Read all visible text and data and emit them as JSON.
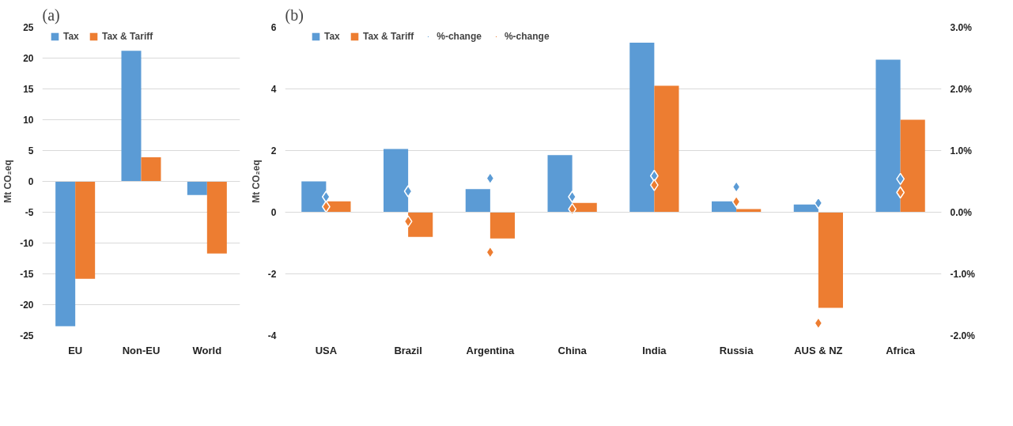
{
  "chart_data": [
    {
      "type": "bar",
      "title": "(a)",
      "ylabel": "Mt CO₂eq",
      "categories": [
        "EU",
        "Non-EU",
        "World"
      ],
      "ylim": [
        -25,
        25
      ],
      "yticks": [
        -25,
        -20,
        -15,
        -10,
        -5,
        0,
        5,
        10,
        15,
        20,
        25
      ],
      "grid": "y",
      "legend": "top",
      "series": [
        {
          "name": "Tax",
          "color": "#5b9bd5",
          "values": [
            -23.5,
            21.2,
            -2.2
          ]
        },
        {
          "name": "Tax & Tariff",
          "color": "#ed7d31",
          "values": [
            -15.8,
            3.9,
            -11.7
          ]
        }
      ]
    },
    {
      "type": "bar",
      "title": "(b)",
      "ylabel": "Mt CO₂eq",
      "categories": [
        "USA",
        "Brazil",
        "Argentina",
        "China",
        "India",
        "Russia",
        "AUS & NZ",
        "Africa"
      ],
      "ylim": [
        -4,
        6
      ],
      "yticks": [
        -4,
        -2,
        0,
        2,
        4,
        6
      ],
      "y2lim": [
        -2,
        3
      ],
      "y2ticks": [
        {
          "value": -2,
          "label": "-2.0%"
        },
        {
          "value": -1,
          "label": "-1.0%"
        },
        {
          "value": 0,
          "label": "0.0%"
        },
        {
          "value": 1,
          "label": "1.0%"
        },
        {
          "value": 2,
          "label": "2.0%"
        },
        {
          "value": 3,
          "label": "3.0%"
        }
      ],
      "grid": "y",
      "legend": "top",
      "series": [
        {
          "name": "Tax",
          "color": "#5b9bd5",
          "values": [
            1.0,
            2.05,
            0.75,
            1.85,
            5.5,
            0.35,
            0.25,
            4.95
          ]
        },
        {
          "name": "Tax & Tariff",
          "color": "#ed7d31",
          "values": [
            0.35,
            -0.8,
            -0.85,
            0.3,
            4.1,
            0.1,
            -3.1,
            3.0
          ]
        },
        {
          "name": "%-change",
          "type": "scatter",
          "axis": "y2",
          "marker": "diamond",
          "color": "#5b9bd5",
          "values": [
            0.25,
            0.34,
            0.55,
            0.25,
            0.59,
            0.41,
            0.15,
            0.54
          ]
        },
        {
          "name": "%-change",
          "type": "scatter",
          "axis": "y2",
          "marker": "diamond",
          "color": "#ed7d31",
          "values": [
            0.09,
            -0.15,
            -0.65,
            0.05,
            0.44,
            0.17,
            -1.8,
            0.32
          ]
        }
      ]
    }
  ]
}
